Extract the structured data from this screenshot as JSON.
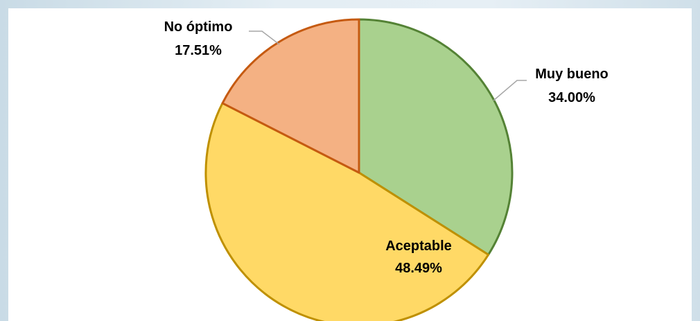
{
  "chart_data": {
    "type": "pie",
    "title": "",
    "slices": [
      {
        "label": "Muy bueno",
        "value": 34.0,
        "value_label": "34.00%",
        "fill": "#a9d18e",
        "stroke": "#548235"
      },
      {
        "label": "Aceptable",
        "value": 48.49,
        "value_label": "48.49%",
        "fill": "#ffd966",
        "stroke": "#bf9000"
      },
      {
        "label": "No óptimo",
        "value": 17.51,
        "value_label": "17.51%",
        "fill": "#f4b183",
        "stroke": "#c55a11"
      }
    ],
    "start_angle": "12 o'clock",
    "direction": "clockwise",
    "legend": "none",
    "leader_line_color": "#a6a6a6"
  }
}
